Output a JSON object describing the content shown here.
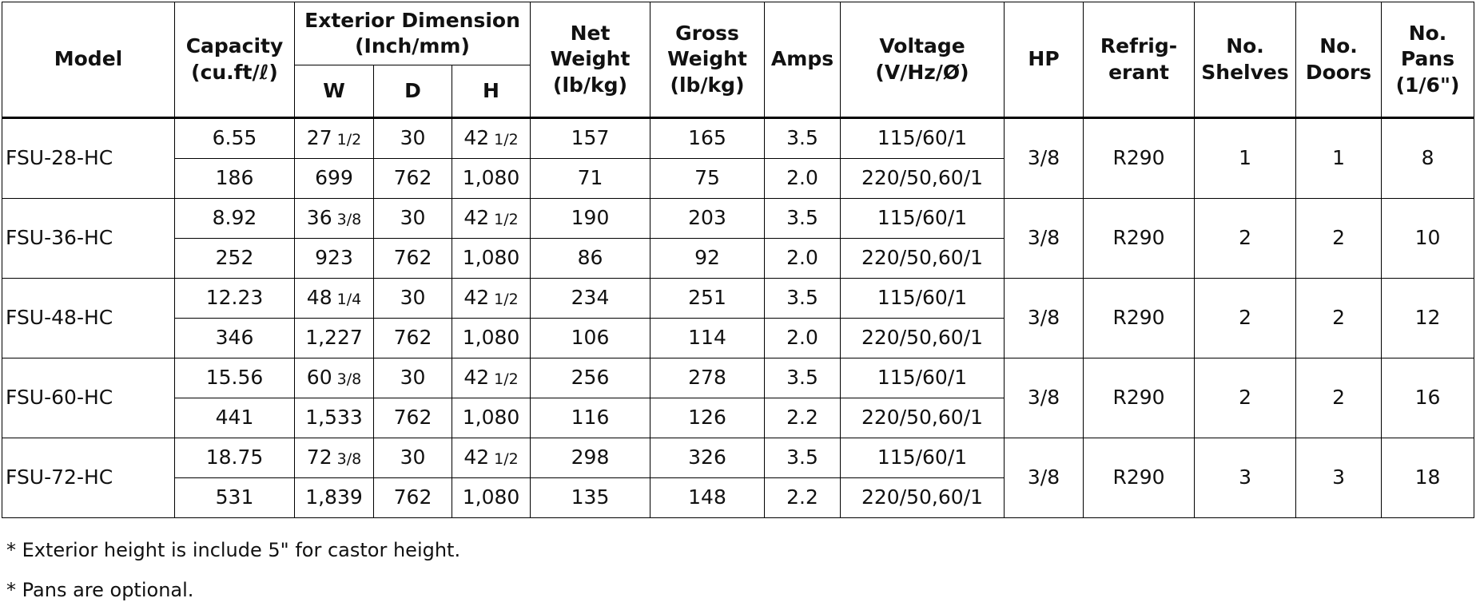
{
  "headers": {
    "model": "Model",
    "capacity": "Capacity\n(cu.ft/ℓ)",
    "exterior": "Exterior Dimension\n(Inch/mm)",
    "w": "W",
    "d": "D",
    "h": "H",
    "net_weight": "Net\nWeight\n(lb/kg)",
    "gross_weight": "Gross\nWeight\n(lb/kg)",
    "amps": "Amps",
    "voltage": "Voltage\n(V/Hz/Ø)",
    "hp": "HP",
    "refrigerant": "Refrig-\nerant",
    "shelves": "No.\nShelves",
    "doors": "No.\nDoors",
    "pans": "No.\nPans\n(1/6\")"
  },
  "rows": [
    {
      "model": "FSU-28-HC",
      "hp": "3/8",
      "refrigerant": "R290",
      "shelves": "1",
      "doors": "1",
      "pans": "8",
      "imperial": {
        "capacity": "6.55",
        "w": "27",
        "w_frac": "1/2",
        "d": "30",
        "h": "42",
        "h_frac": "1/2",
        "net": "157",
        "gross": "165",
        "amps": "3.5",
        "voltage": "115/60/1"
      },
      "metric": {
        "capacity": "186",
        "w": "699",
        "d": "762",
        "h": "1,080",
        "net": "71",
        "gross": "75",
        "amps": "2.0",
        "voltage": "220/50,60/1"
      }
    },
    {
      "model": "FSU-36-HC",
      "hp": "3/8",
      "refrigerant": "R290",
      "shelves": "2",
      "doors": "2",
      "pans": "10",
      "imperial": {
        "capacity": "8.92",
        "w": "36",
        "w_frac": "3/8",
        "d": "30",
        "h": "42",
        "h_frac": "1/2",
        "net": "190",
        "gross": "203",
        "amps": "3.5",
        "voltage": "115/60/1"
      },
      "metric": {
        "capacity": "252",
        "w": "923",
        "d": "762",
        "h": "1,080",
        "net": "86",
        "gross": "92",
        "amps": "2.0",
        "voltage": "220/50,60/1"
      }
    },
    {
      "model": "FSU-48-HC",
      "hp": "3/8",
      "refrigerant": "R290",
      "shelves": "2",
      "doors": "2",
      "pans": "12",
      "imperial": {
        "capacity": "12.23",
        "w": "48",
        "w_frac": "1/4",
        "d": "30",
        "h": "42",
        "h_frac": "1/2",
        "net": "234",
        "gross": "251",
        "amps": "3.5",
        "voltage": "115/60/1"
      },
      "metric": {
        "capacity": "346",
        "w": "1,227",
        "d": "762",
        "h": "1,080",
        "net": "106",
        "gross": "114",
        "amps": "2.0",
        "voltage": "220/50,60/1"
      }
    },
    {
      "model": "FSU-60-HC",
      "hp": "3/8",
      "refrigerant": "R290",
      "shelves": "2",
      "doors": "2",
      "pans": "16",
      "imperial": {
        "capacity": "15.56",
        "w": "60",
        "w_frac": "3/8",
        "d": "30",
        "h": "42",
        "h_frac": "1/2",
        "net": "256",
        "gross": "278",
        "amps": "3.5",
        "voltage": "115/60/1"
      },
      "metric": {
        "capacity": "441",
        "w": "1,533",
        "d": "762",
        "h": "1,080",
        "net": "116",
        "gross": "126",
        "amps": "2.2",
        "voltage": "220/50,60/1"
      }
    },
    {
      "model": "FSU-72-HC",
      "hp": "3/8",
      "refrigerant": "R290",
      "shelves": "3",
      "doors": "3",
      "pans": "18",
      "imperial": {
        "capacity": "18.75",
        "w": "72",
        "w_frac": "3/8",
        "d": "30",
        "h": "42",
        "h_frac": "1/2",
        "net": "298",
        "gross": "326",
        "amps": "3.5",
        "voltage": "115/60/1"
      },
      "metric": {
        "capacity": "531",
        "w": "1,839",
        "d": "762",
        "h": "1,080",
        "net": "135",
        "gross": "148",
        "amps": "2.2",
        "voltage": "220/50,60/1"
      }
    }
  ],
  "notes": [
    "* Exterior height is include 5\" for castor height.",
    "* Pans are optional."
  ]
}
